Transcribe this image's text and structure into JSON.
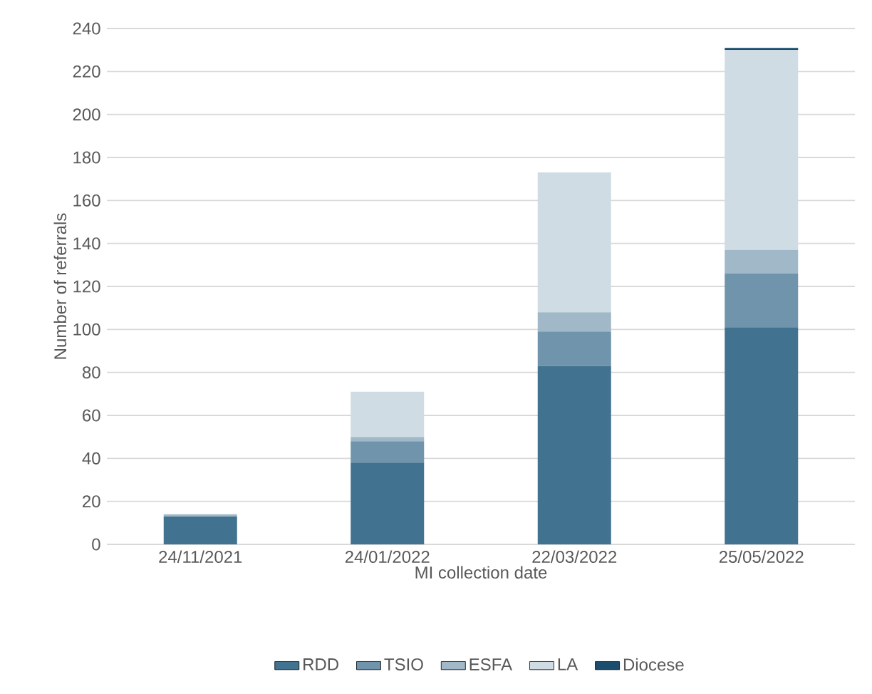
{
  "chart_data": {
    "type": "bar",
    "stacked": true,
    "xlabel": "MI collection date",
    "ylabel": "Number of referrals",
    "categories": [
      "24/11/2021",
      "24/01/2022",
      "22/03/2022",
      "25/05/2022"
    ],
    "series": [
      {
        "name": "RDD",
        "color": "#41728f",
        "values": [
          13,
          38,
          83,
          101
        ]
      },
      {
        "name": "TSIO",
        "color": "#6f94ab",
        "values": [
          0,
          10,
          16,
          25
        ]
      },
      {
        "name": "ESFA",
        "color": "#a0b8c7",
        "values": [
          1,
          2,
          9,
          11
        ]
      },
      {
        "name": "LA",
        "color": "#cfdce4",
        "values": [
          0,
          21,
          65,
          93
        ]
      },
      {
        "name": "Diocese",
        "color": "#1a4d6e",
        "values": [
          0,
          0,
          0,
          1
        ]
      }
    ],
    "ylim": [
      0,
      240
    ],
    "yticks": [
      0,
      20,
      40,
      60,
      80,
      100,
      120,
      140,
      160,
      180,
      200,
      220,
      240
    ],
    "grid": "y",
    "legend": "bottom"
  }
}
